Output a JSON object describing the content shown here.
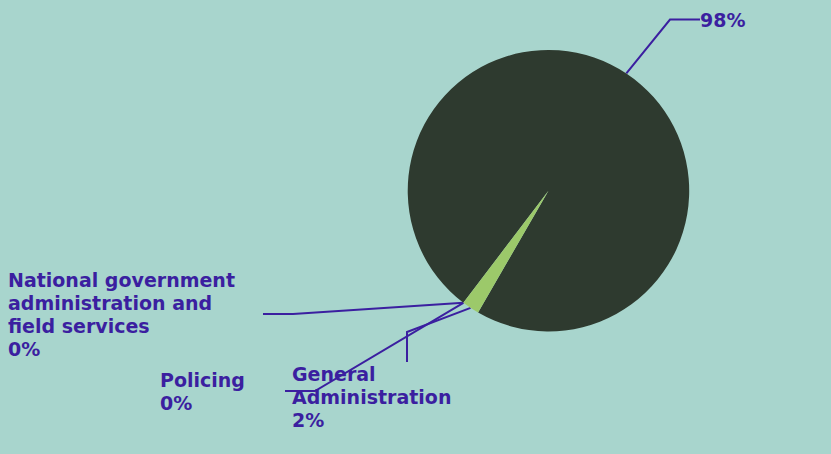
{
  "chart_data": {
    "type": "pie",
    "categories": [
      null,
      "General Administration",
      "Policing",
      "National government administration and field services"
    ],
    "values": [
      98,
      2,
      0,
      0
    ],
    "value_labels": [
      "98%",
      "2%",
      "0%",
      "0%"
    ],
    "colors": [
      "#2e3a2f",
      "#9cc96a",
      "#3a2bd0",
      "#5a2aa0"
    ],
    "data_labels": true
  }
}
